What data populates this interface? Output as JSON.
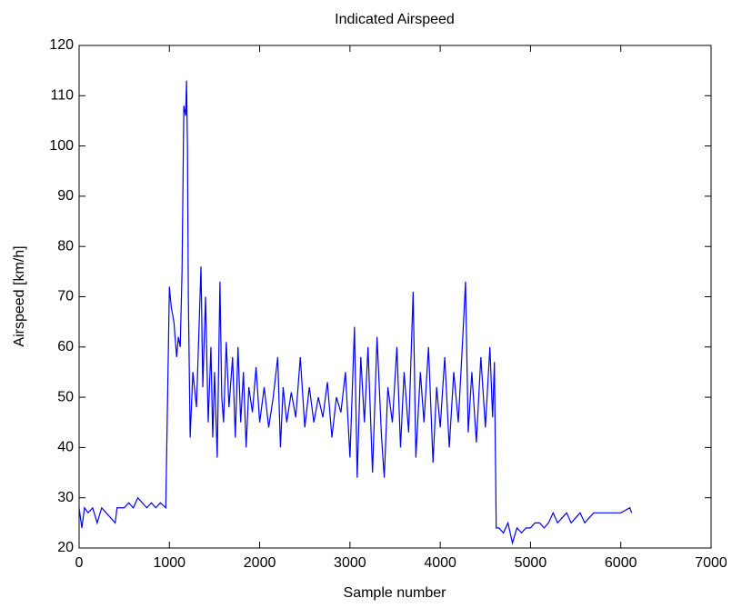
{
  "chart_data": {
    "type": "line",
    "title": "Indicated Airspeed",
    "x_label": "Sample number",
    "y_label": "Airspeed [km/h]",
    "xlim": [
      0,
      7000
    ],
    "xticks": [
      0,
      1000,
      2000,
      3000,
      4000,
      5000,
      6000,
      7000
    ],
    "ylim": [
      20,
      120
    ],
    "yticks": [
      20,
      30,
      40,
      50,
      60,
      70,
      80,
      90,
      100,
      110,
      120
    ],
    "x": [
      0,
      30,
      60,
      100,
      150,
      200,
      250,
      300,
      350,
      400,
      420,
      500,
      550,
      600,
      650,
      700,
      750,
      800,
      850,
      900,
      960,
      980,
      1000,
      1020,
      1050,
      1080,
      1100,
      1120,
      1140,
      1160,
      1180,
      1190,
      1200,
      1210,
      1230,
      1260,
      1300,
      1350,
      1370,
      1400,
      1430,
      1460,
      1480,
      1500,
      1530,
      1560,
      1580,
      1600,
      1630,
      1660,
      1700,
      1730,
      1760,
      1790,
      1820,
      1850,
      1880,
      1920,
      1960,
      2000,
      2050,
      2100,
      2150,
      2200,
      2230,
      2260,
      2300,
      2350,
      2400,
      2450,
      2500,
      2550,
      2600,
      2650,
      2700,
      2750,
      2800,
      2850,
      2900,
      2950,
      3000,
      3050,
      3080,
      3120,
      3160,
      3200,
      3250,
      3300,
      3350,
      3380,
      3420,
      3470,
      3520,
      3560,
      3600,
      3650,
      3700,
      3730,
      3780,
      3820,
      3870,
      3920,
      3960,
      4000,
      4050,
      4100,
      4150,
      4200,
      4250,
      4280,
      4310,
      4350,
      4400,
      4450,
      4500,
      4550,
      4580,
      4600,
      4620,
      4650,
      4700,
      4750,
      4800,
      4850,
      4900,
      4950,
      5000,
      5050,
      5100,
      5150,
      5200,
      5250,
      5300,
      5350,
      5400,
      5450,
      5500,
      5550,
      5600,
      5650,
      5700,
      5750,
      5800,
      5900,
      6000,
      6100,
      6120
    ],
    "series": [
      {
        "name": "Airspeed",
        "color": "#0000ff",
        "values": [
          28,
          24,
          28,
          27,
          28,
          25,
          28,
          27,
          26,
          25,
          28,
          28,
          29,
          28,
          30,
          29,
          28,
          29,
          28,
          29,
          28,
          50,
          72,
          68,
          65,
          58,
          62,
          60,
          75,
          108,
          106,
          113,
          100,
          70,
          42,
          55,
          48,
          76,
          52,
          70,
          45,
          60,
          42,
          55,
          38,
          73,
          50,
          45,
          61,
          48,
          58,
          42,
          60,
          45,
          55,
          40,
          52,
          47,
          56,
          45,
          52,
          44,
          50,
          58,
          40,
          52,
          45,
          51,
          46,
          58,
          44,
          52,
          45,
          50,
          46,
          53,
          42,
          50,
          47,
          55,
          38,
          64,
          34,
          58,
          45,
          60,
          35,
          62,
          42,
          34,
          52,
          45,
          60,
          40,
          55,
          43,
          71,
          38,
          55,
          45,
          60,
          37,
          52,
          44,
          58,
          40,
          55,
          45,
          62,
          73,
          43,
          55,
          41,
          58,
          44,
          60,
          46,
          57,
          24,
          24,
          23,
          25,
          21,
          24,
          23,
          24,
          24,
          25,
          25,
          24,
          25,
          27,
          25,
          26,
          27,
          25,
          26,
          27,
          25,
          26,
          27,
          27,
          27,
          27,
          27,
          28,
          27
        ]
      }
    ]
  }
}
